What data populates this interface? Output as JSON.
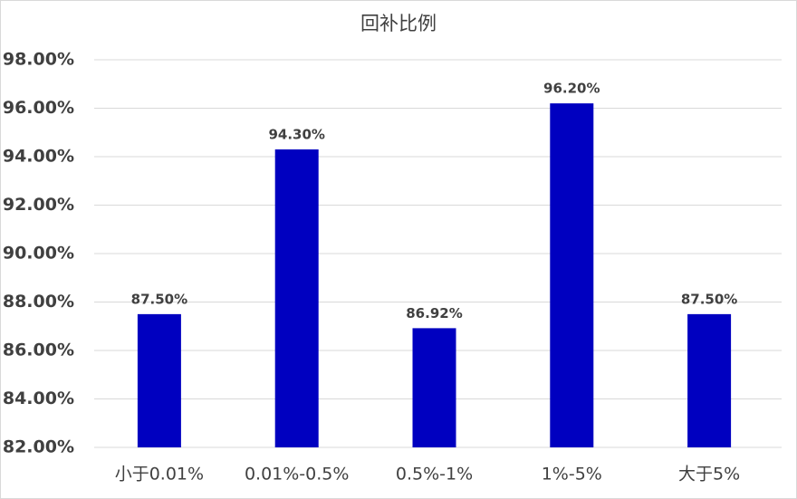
{
  "chart_data": {
    "type": "bar",
    "title": "回补比例",
    "categories": [
      "小于0.01%",
      "0.01%-0.5%",
      "0.5%-1%",
      "1%-5%",
      "大于5%"
    ],
    "values": [
      87.5,
      94.3,
      86.92,
      96.2,
      87.5
    ],
    "value_labels": [
      "87.50%",
      "94.30%",
      "86.92%",
      "96.20%",
      "87.50%"
    ],
    "color": "#0000c0",
    "ylim": [
      82,
      98
    ],
    "yticks": [
      {
        "value": 82,
        "label": "82.00%"
      },
      {
        "value": 84,
        "label": "84.00%"
      },
      {
        "value": 86,
        "label": "86.00%"
      },
      {
        "value": 88,
        "label": "88.00%"
      },
      {
        "value": 90,
        "label": "90.00%"
      },
      {
        "value": 92,
        "label": "92.00%"
      },
      {
        "value": 94,
        "label": "94.00%"
      },
      {
        "value": 96,
        "label": "96.00%"
      },
      {
        "value": 98,
        "label": "98.00%"
      }
    ],
    "grid": true
  }
}
